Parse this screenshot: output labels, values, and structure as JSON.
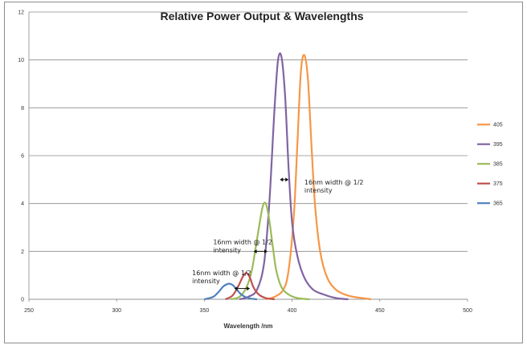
{
  "chart_data": {
    "type": "line",
    "title": "Relative Power Output & Wavelengths",
    "xlabel": "Wavelength /nm",
    "ylabel": "",
    "xlim": [
      250,
      500
    ],
    "ylim": [
      0,
      12
    ],
    "x_ticks": [
      "250",
      "300",
      "350",
      "400",
      "450",
      "500"
    ],
    "y_ticks": [
      "0",
      "2",
      "4",
      "6",
      "8",
      "10",
      "12"
    ],
    "grid": "horizontal",
    "legend_position": "right",
    "series": [
      {
        "name": "405",
        "color": "#f79646",
        "x": [
          385,
          390,
          395,
          398,
          401,
          403,
          405,
          407,
          409,
          411,
          413,
          416,
          420,
          425,
          430,
          435,
          440,
          445
        ],
        "y": [
          0,
          0.1,
          0.4,
          1.2,
          3.5,
          6.5,
          9.5,
          10.2,
          9.2,
          6.5,
          4.0,
          2.0,
          0.9,
          0.4,
          0.2,
          0.1,
          0.05,
          0
        ]
      },
      {
        "name": "395",
        "color": "#8064a2",
        "x": [
          370,
          375,
          380,
          384,
          387,
          390,
          392,
          394,
          396,
          398,
          400,
          403,
          407,
          412,
          418,
          425,
          432
        ],
        "y": [
          0,
          0.1,
          0.4,
          1.5,
          4.0,
          8.0,
          10.0,
          10.1,
          8.5,
          5.5,
          3.2,
          1.8,
          0.9,
          0.4,
          0.2,
          0.05,
          0
        ]
      },
      {
        "name": "385",
        "color": "#9bbb59",
        "x": [
          365,
          370,
          374,
          377,
          380,
          383,
          385,
          387,
          389,
          391,
          394,
          398,
          403,
          410
        ],
        "y": [
          0,
          0.1,
          0.5,
          1.2,
          2.5,
          3.8,
          4.0,
          3.3,
          2.2,
          1.2,
          0.5,
          0.2,
          0.05,
          0
        ]
      },
      {
        "name": "375",
        "color": "#c0504d",
        "x": [
          362,
          366,
          369,
          372,
          374,
          376,
          378,
          381,
          385,
          390
        ],
        "y": [
          0,
          0.15,
          0.5,
          0.95,
          1.1,
          0.9,
          0.5,
          0.2,
          0.05,
          0
        ]
      },
      {
        "name": "365",
        "color": "#4f81bd",
        "x": [
          350,
          355,
          358,
          361,
          364,
          366,
          368,
          371,
          375,
          380
        ],
        "y": [
          0,
          0.1,
          0.3,
          0.55,
          0.65,
          0.6,
          0.45,
          0.2,
          0.05,
          0
        ]
      }
    ],
    "annotations": [
      {
        "text": "16nm width @ 1/2 intensity",
        "x": 407,
        "y": 4.8,
        "arrow_x": [
          393,
          398
        ],
        "arrow_y": 5.0
      },
      {
        "text": "16nm width @ 1/2 intensity",
        "x": 355,
        "y": 2.3,
        "arrow_x": [
          378,
          386
        ],
        "arrow_y": 2.0
      },
      {
        "text": "16nm width @ 1/2 intensity",
        "x": 343,
        "y": 1.0,
        "arrow_x": [
          367,
          376
        ],
        "arrow_y": 0.45
      }
    ]
  }
}
